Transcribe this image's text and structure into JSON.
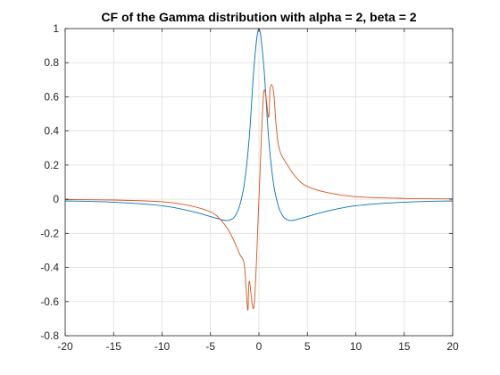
{
  "chart_data": {
    "type": "line",
    "title": "CF of the Gamma distribution with alpha = 2, beta = 2",
    "xlabel": "",
    "ylabel": "",
    "xlim": [
      -20,
      20
    ],
    "ylim": [
      -0.8,
      1
    ],
    "xticks": [
      -20,
      -15,
      -10,
      -5,
      0,
      5,
      10,
      15,
      20
    ],
    "xtick_labels": [
      "-20",
      "-15",
      "-10",
      "-5",
      "0",
      "5",
      "10",
      "15",
      "20"
    ],
    "yticks": [
      -0.8,
      -0.6,
      -0.4,
      -0.2,
      0,
      0.2,
      0.4,
      0.6,
      0.8,
      1
    ],
    "ytick_labels": [
      "-0.8",
      "-0.6",
      "-0.4",
      "-0.2",
      "0",
      "0.2",
      "0.4",
      "0.6",
      "0.8",
      "1"
    ],
    "grid": true,
    "legend": "none",
    "series": [
      {
        "color": "#0072BD",
        "x": [
          -20,
          -15,
          -10,
          -7,
          -5,
          -4,
          -3.46,
          -3,
          -2.5,
          -2,
          -1.5,
          -1,
          -0.5,
          0,
          0.5,
          1,
          1.5,
          2,
          2.5,
          3,
          3.46,
          4,
          5,
          7,
          10,
          15,
          20
        ],
        "y": [
          -0.0099,
          -0.0176,
          -0.0384,
          -0.0707,
          -0.1016,
          -0.1176,
          -0.125,
          -0.1224,
          -0.1014,
          -0.04,
          0.0937,
          0.36,
          0.7806,
          1,
          0.7806,
          0.36,
          0.0937,
          -0.04,
          -0.1014,
          -0.1224,
          -0.125,
          -0.1176,
          -0.1016,
          -0.0707,
          -0.0384,
          -0.0176,
          -0.0099
        ]
      },
      {
        "color": "#D95319",
        "x": [
          -20,
          -15,
          -10,
          -7,
          -5,
          -4,
          -3,
          -2,
          -1.5,
          -1.155,
          -1,
          -0.5,
          0,
          0.5,
          1,
          1.155,
          1.5,
          2,
          3,
          4,
          5,
          7,
          10,
          15,
          20
        ],
        "y": [
          -0.002,
          -0.0047,
          -0.0148,
          -0.0394,
          -0.0747,
          -0.1176,
          -0.1951,
          -0.32,
          -0.3892,
          -0.6495,
          -0.48,
          -0.6243,
          0,
          0.6243,
          0.48,
          0.6495,
          0.6336,
          0.32,
          0.1951,
          0.1176,
          0.0747,
          0.0394,
          0.0148,
          0.0047,
          0.002
        ]
      }
    ]
  }
}
